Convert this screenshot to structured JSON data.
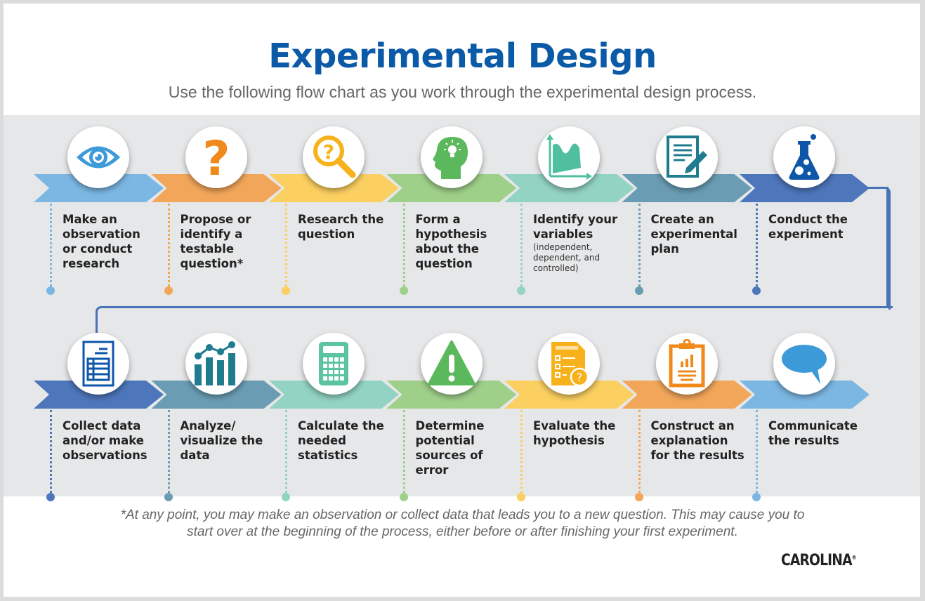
{
  "header": {
    "title": "Experimental Design",
    "subtitle": "Use the following flow chart as you work through the experimental design process."
  },
  "colors": {
    "title_blue": "#0a5aa8",
    "connector": "#4a72b8",
    "band_bg": "#e6e7e8"
  },
  "steps_row1": [
    {
      "label": "Make an observation or conduct research",
      "icon": "eye-icon",
      "color": "#7cb7e3",
      "icon_color": "#3d9ad8"
    },
    {
      "label": "Propose or identify a testable question*",
      "icon": "question-mark-icon",
      "color": "#f2a65a",
      "icon_color": "#f08a1c"
    },
    {
      "label": "Research the question",
      "icon": "magnifier-question-icon",
      "color": "#fbcf60",
      "icon_color": "#f7b21b"
    },
    {
      "label": "Form a hypothesis about the question",
      "icon": "head-lightbulb-icon",
      "color": "#9fd08a",
      "icon_color": "#5cb85c"
    },
    {
      "label": "Identify your variables",
      "sublabel": "(independent, dependent, and controlled)",
      "icon": "graph-icon",
      "color": "#92d3c4",
      "icon_color": "#4fbf9f"
    },
    {
      "label": "Create an experimental plan",
      "icon": "document-pencil-icon",
      "color": "#6a9db4",
      "icon_color": "#1f7b8e"
    },
    {
      "label": "Conduct the experiment",
      "icon": "flask-icon",
      "color": "#4e76bb",
      "icon_color": "#0e56a8"
    }
  ],
  "steps_row2": [
    {
      "label": "Collect data and/or make observations",
      "icon": "spreadsheet-icon",
      "color": "#4e76bb",
      "icon_color": "#0e56a8"
    },
    {
      "label": "Analyze/ visualize the data",
      "icon": "bar-line-chart-icon",
      "color": "#6a9db4",
      "icon_color": "#1f7b8e"
    },
    {
      "label": "Calculate the needed statistics",
      "icon": "calculator-icon",
      "color": "#92d3c4",
      "icon_color": "#5cc4a0"
    },
    {
      "label": "Determine potential sources of error",
      "icon": "warning-icon",
      "color": "#9fd08a",
      "icon_color": "#5cb85c"
    },
    {
      "label": "Evaluate the hypothesis",
      "icon": "checklist-question-icon",
      "color": "#fbcf60",
      "icon_color": "#f7b21b"
    },
    {
      "label": "Construct an explanation for the results",
      "icon": "clipboard-chart-icon",
      "color": "#f2a65a",
      "icon_color": "#f08a1c"
    },
    {
      "label": "Communicate the results",
      "icon": "speech-bubble-icon",
      "color": "#7cb7e3",
      "icon_color": "#3d9ad8"
    }
  ],
  "footer": {
    "footnote_line1": "*At any point, you may make an observation or collect data that leads you to a new question. This may cause you to",
    "footnote_line2": "start over at the beginning of the process, either before or after finishing your first experiment.",
    "logo": "CAROLINA",
    "logo_mark": "®"
  }
}
